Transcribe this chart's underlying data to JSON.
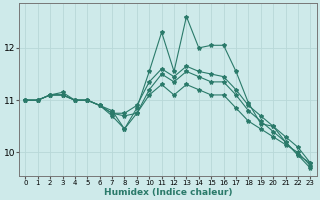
{
  "xlabel": "Humidex (Indice chaleur)",
  "ylabel": "",
  "background_color": "#ceeaea",
  "grid_color": "#b8d8d8",
  "line_color": "#2a7a6a",
  "x": [
    0,
    1,
    2,
    3,
    4,
    5,
    6,
    7,
    8,
    9,
    10,
    11,
    12,
    13,
    14,
    15,
    16,
    17,
    18,
    19,
    20,
    21,
    22,
    23
  ],
  "line_max": [
    11.0,
    11.0,
    11.1,
    11.15,
    11.0,
    11.0,
    10.9,
    10.8,
    10.45,
    10.85,
    11.55,
    12.3,
    11.55,
    12.6,
    12.0,
    12.05,
    12.05,
    11.55,
    10.95,
    10.55,
    10.5,
    10.2,
    9.95,
    9.8
  ],
  "line_p75": [
    11.0,
    11.0,
    11.1,
    11.1,
    11.0,
    11.0,
    10.9,
    10.75,
    10.75,
    10.9,
    11.35,
    11.6,
    11.45,
    11.65,
    11.55,
    11.5,
    11.45,
    11.2,
    10.9,
    10.7,
    10.5,
    10.3,
    10.1,
    9.8
  ],
  "line_mean": [
    11.0,
    11.0,
    11.1,
    11.1,
    11.0,
    11.0,
    10.9,
    10.75,
    10.7,
    10.75,
    11.1,
    11.3,
    11.1,
    11.3,
    11.2,
    11.1,
    11.1,
    10.85,
    10.6,
    10.45,
    10.3,
    10.15,
    10.0,
    9.75
  ],
  "line_p25": [
    11.0,
    11.0,
    11.1,
    11.1,
    11.0,
    11.0,
    10.9,
    10.7,
    10.45,
    10.75,
    11.2,
    11.5,
    11.35,
    11.55,
    11.45,
    11.35,
    11.35,
    11.1,
    10.8,
    10.6,
    10.4,
    10.2,
    9.95,
    9.7
  ],
  "ylim": [
    9.55,
    12.85
  ],
  "yticks": [
    10,
    11,
    12
  ],
  "xticks": [
    0,
    1,
    2,
    3,
    4,
    5,
    6,
    7,
    8,
    9,
    10,
    11,
    12,
    13,
    14,
    15,
    16,
    17,
    18,
    19,
    20,
    21,
    22,
    23
  ],
  "marker": "*",
  "marker_size": 3,
  "line_width": 0.8
}
